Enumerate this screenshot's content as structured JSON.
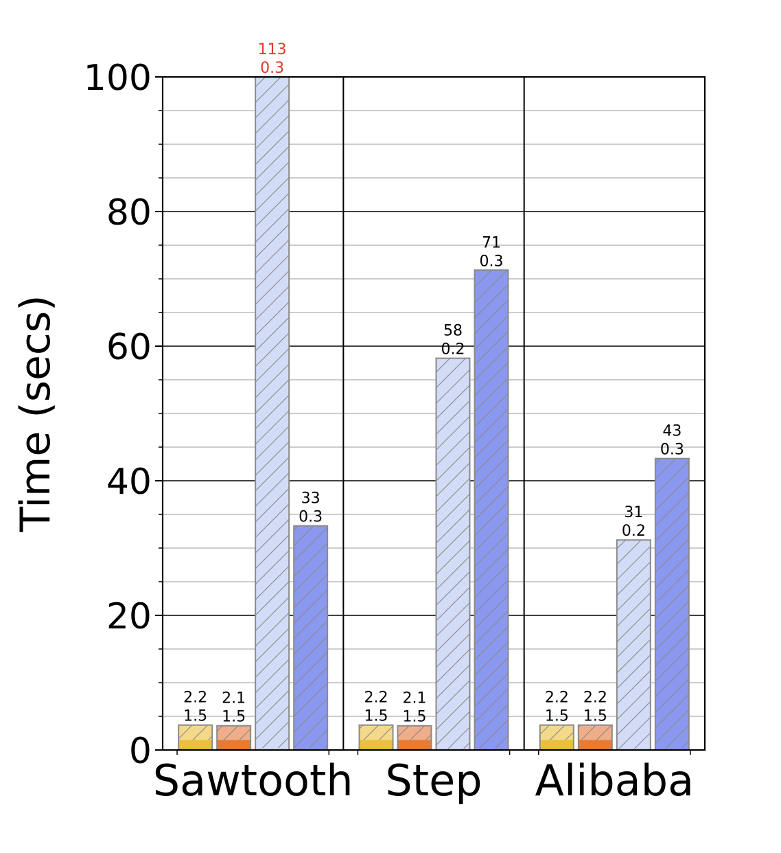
{
  "chart_data": {
    "type": "bar",
    "ylabel": "Time (secs)",
    "ylim": [
      0,
      100
    ],
    "yticks": [
      0,
      20,
      40,
      60,
      80,
      100
    ],
    "yminor_step": 5,
    "grid": true,
    "categories": [
      "Sawtooth",
      "Step",
      "Alibaba"
    ],
    "overflow_label_color": "#e03a2a",
    "series": [
      {
        "fill": "#f5d98a",
        "base_fill": "#e9c13c",
        "hatched": true,
        "total": [
          3.7,
          3.7,
          3.7
        ],
        "base": [
          1.5,
          1.5,
          1.5
        ],
        "top_label": [
          "2.2",
          "2.2",
          "2.2"
        ],
        "base_label": [
          "1.5",
          "1.5",
          "1.5"
        ]
      },
      {
        "fill": "#f0ad8a",
        "base_fill": "#e87b33",
        "hatched": true,
        "total": [
          3.6,
          3.6,
          3.7
        ],
        "base": [
          1.5,
          1.5,
          1.5
        ],
        "top_label": [
          "2.1",
          "2.1",
          "2.2"
        ],
        "base_label": [
          "1.5",
          "1.5",
          "1.5"
        ]
      },
      {
        "fill": "#d3dcf7",
        "base_fill": "#d3dcf7",
        "hatched": true,
        "total": [
          113.3,
          58.2,
          31.2
        ],
        "base": [
          0.3,
          0.2,
          0.2
        ],
        "top_label": [
          "113",
          "58",
          "31"
        ],
        "base_label": [
          "0.3",
          "0.2",
          "0.2"
        ]
      },
      {
        "fill": "#8b98ef",
        "base_fill": "#8b98ef",
        "hatched": true,
        "total": [
          33.3,
          71.3,
          43.3
        ],
        "base": [
          0.3,
          0.3,
          0.3
        ],
        "top_label": [
          "33",
          "71",
          "43"
        ],
        "base_label": [
          "0.3",
          "0.3",
          "0.3"
        ]
      }
    ]
  }
}
